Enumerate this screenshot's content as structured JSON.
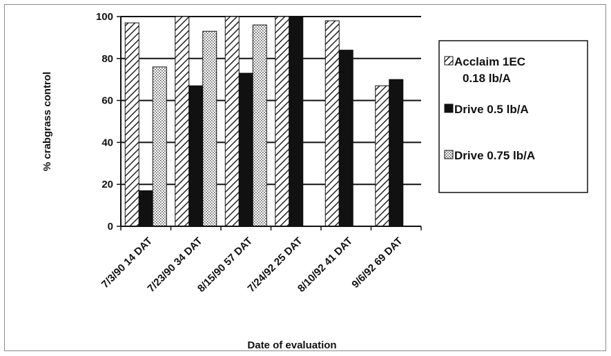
{
  "chart_data": {
    "type": "bar",
    "title": "",
    "xlabel": "Date of evaluation",
    "ylabel": "% crabgrass control",
    "ylim": [
      0,
      100
    ],
    "yticks": [
      0,
      20,
      40,
      60,
      80,
      100
    ],
    "grid": "horizontal",
    "legend_position": "right",
    "categories": [
      "7/3/90 14 DAT",
      "7/23/90 34 DAT",
      "8/15/90 57 DAT",
      "7/24/92 25 DAT",
      "8/10/92 41 DAT",
      "9/6/92 69 DAT"
    ],
    "series": [
      {
        "name": "Acclaim 1EC 0.18 lb/A",
        "legend_lines": [
          "Acclaim 1EC",
          "0.18 lb/A"
        ],
        "pattern": "diagonal-hatch",
        "values": [
          97,
          100,
          100,
          100,
          98,
          67
        ]
      },
      {
        "name": "Drive  0.5 lb/A",
        "legend_lines": [
          "Drive  0.5 lb/A"
        ],
        "pattern": "solid-black",
        "values": [
          17,
          67,
          73,
          100,
          84,
          70
        ]
      },
      {
        "name": "Drive 0.75 lb/A",
        "legend_lines": [
          "Drive 0.75 lb/A"
        ],
        "pattern": "dotted",
        "values": [
          76,
          93,
          96,
          null,
          null,
          null
        ]
      }
    ]
  }
}
